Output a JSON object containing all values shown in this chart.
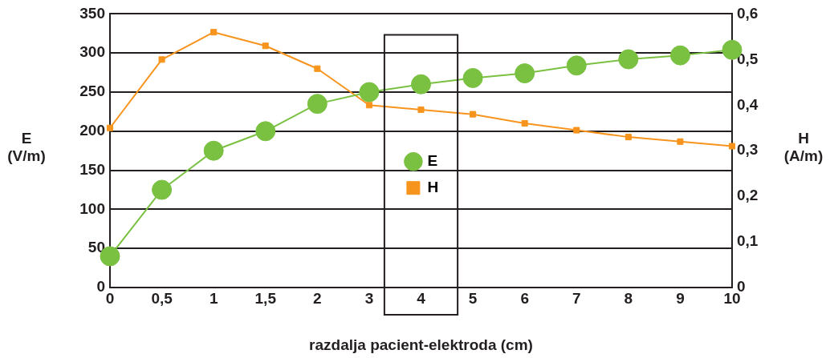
{
  "chart_data": {
    "type": "line",
    "xlabel": "razdalja pacient-elektroda (cm)",
    "ylabel": "E (V/m)",
    "y2label": "H (A/m)",
    "categories": [
      "0",
      "0,5",
      "1",
      "1,5",
      "2",
      "3",
      "4",
      "5",
      "6",
      "7",
      "8",
      "9",
      "10"
    ],
    "series": [
      {
        "name": "E",
        "color": "#7ac142",
        "marker": "circle",
        "values": [
          40,
          125,
          175,
          200,
          235,
          250,
          260,
          268,
          274,
          284,
          292,
          297,
          304
        ]
      },
      {
        "name": "H",
        "color": "#f7941d",
        "marker": "square",
        "axis": "y2",
        "values": [
          0.35,
          0.5,
          0.56,
          0.53,
          0.48,
          0.4,
          0.39,
          0.38,
          0.36,
          0.345,
          0.33,
          0.32,
          0.31
        ]
      }
    ],
    "ylim": [
      0,
      350
    ],
    "yticks": [
      0,
      50,
      100,
      150,
      200,
      250,
      300,
      350
    ],
    "y2lim": [
      0,
      0.6
    ],
    "y2ticks": [
      0,
      {
        "value": 0.1,
        "label": "0,1"
      },
      {
        "value": 0.2,
        "label": "0,2"
      },
      {
        "value": 0.3,
        "label": "0,3"
      },
      {
        "value": 0.4,
        "label": "0,4"
      },
      {
        "value": 0.5,
        "label": "0,5"
      },
      {
        "value": 0.6,
        "label": "0,6"
      }
    ],
    "grid": "y",
    "legend": "center"
  }
}
